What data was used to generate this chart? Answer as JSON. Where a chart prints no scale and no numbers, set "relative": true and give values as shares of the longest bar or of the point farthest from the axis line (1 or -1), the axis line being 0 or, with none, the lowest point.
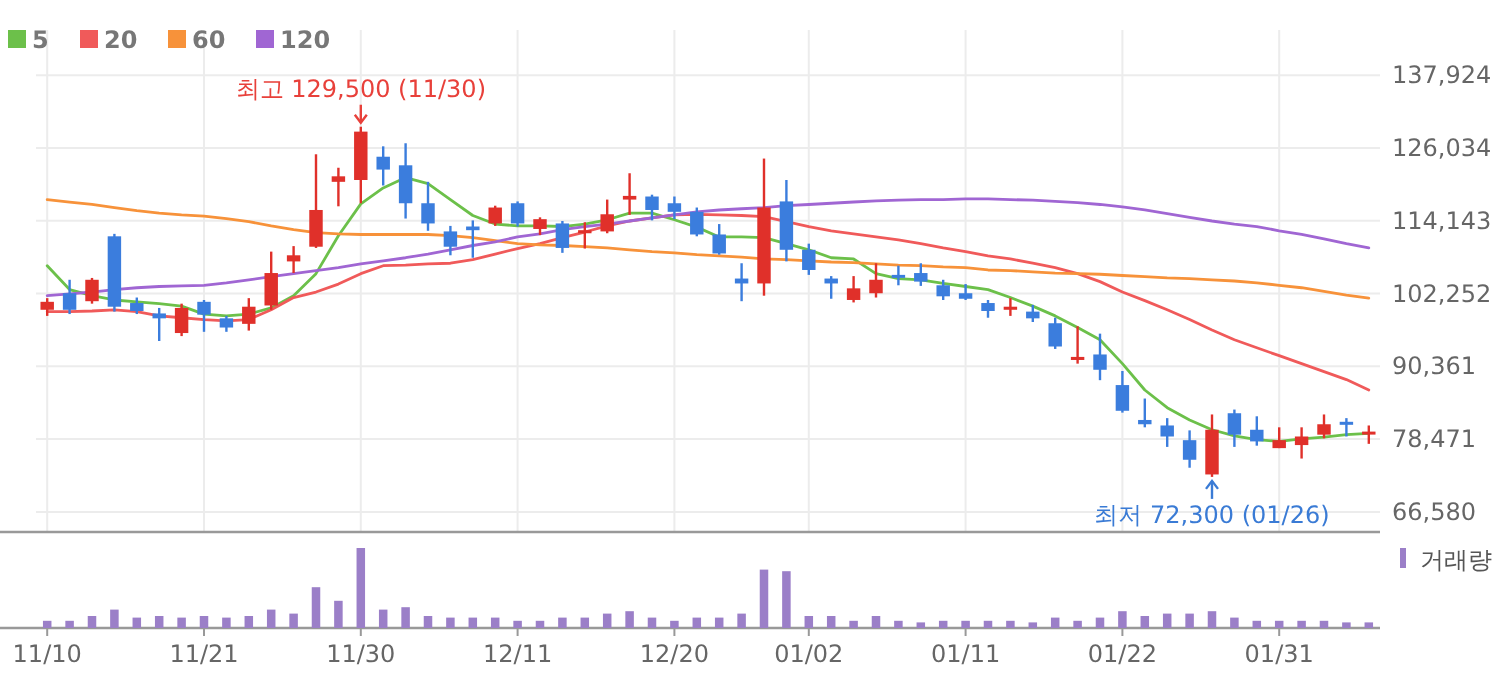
{
  "chart_data": [
    {
      "type": "candlestick",
      "categories": [
        "11/10",
        null,
        null,
        null,
        null,
        null,
        null,
        "11/21",
        null,
        null,
        null,
        null,
        null,
        null,
        "11/30",
        null,
        null,
        null,
        null,
        null,
        null,
        "12/11",
        null,
        null,
        null,
        null,
        null,
        null,
        "12/20",
        null,
        null,
        null,
        null,
        null,
        "01/02",
        null,
        null,
        null,
        null,
        null,
        null,
        "01/11",
        null,
        null,
        null,
        null,
        null,
        null,
        "01/22",
        null,
        null,
        null,
        null,
        null,
        null,
        "01/31",
        null,
        null,
        null,
        null
      ],
      "ohlc": [
        [
          99600,
          101500,
          98600,
          100900
        ],
        [
          102300,
          104500,
          98900,
          99600
        ],
        [
          101000,
          104800,
          100600,
          104500
        ],
        [
          111600,
          112000,
          99300,
          100100
        ],
        [
          100700,
          101600,
          98900,
          99400
        ],
        [
          99000,
          99900,
          94500,
          98200
        ],
        [
          95800,
          100600,
          95300,
          99900
        ],
        [
          100900,
          101200,
          96000,
          98800
        ],
        [
          98200,
          98600,
          96000,
          96700
        ],
        [
          97300,
          101500,
          96200,
          100100
        ],
        [
          100300,
          109100,
          99600,
          105600
        ],
        [
          107500,
          110000,
          105600,
          108500
        ],
        [
          109900,
          125000,
          109700,
          115900
        ],
        [
          120500,
          122800,
          116500,
          121400
        ],
        [
          120800,
          129500,
          117000,
          128700
        ],
        [
          124600,
          126300,
          119900,
          122500
        ],
        [
          123200,
          126800,
          114500,
          117000
        ],
        [
          117000,
          120500,
          112500,
          113700
        ],
        [
          112400,
          113300,
          108500,
          109900
        ],
        [
          113200,
          114200,
          108100,
          112600
        ],
        [
          113700,
          116600,
          113300,
          116300
        ],
        [
          117000,
          117300,
          113200,
          113700
        ],
        [
          112800,
          114700,
          111800,
          114400
        ],
        [
          113700,
          114100,
          108900,
          109700
        ],
        [
          112100,
          113900,
          109600,
          112600
        ],
        [
          112400,
          117600,
          112100,
          115200
        ],
        [
          117600,
          121900,
          115100,
          118200
        ],
        [
          118100,
          118400,
          114200,
          115900
        ],
        [
          117000,
          118100,
          114400,
          115600
        ],
        [
          115600,
          116300,
          111600,
          111900
        ],
        [
          111900,
          113600,
          108600,
          108800
        ],
        [
          104700,
          107200,
          101000,
          103900
        ],
        [
          103900,
          124300,
          101900,
          116300
        ],
        [
          117300,
          120800,
          107500,
          109400
        ],
        [
          109400,
          110400,
          105300,
          106100
        ],
        [
          104700,
          105100,
          101400,
          103900
        ],
        [
          101200,
          105100,
          100800,
          103100
        ],
        [
          102300,
          107200,
          101600,
          104500
        ],
        [
          105300,
          106800,
          103600,
          104900
        ],
        [
          105600,
          107200,
          103500,
          104200
        ],
        [
          103600,
          104500,
          101200,
          101800
        ],
        [
          102300,
          103800,
          101200,
          101400
        ],
        [
          100700,
          101200,
          98300,
          99400
        ],
        [
          99600,
          101500,
          98600,
          100100
        ],
        [
          99300,
          100400,
          97600,
          98200
        ],
        [
          97400,
          98300,
          93200,
          93600
        ],
        [
          91400,
          96900,
          90800,
          91900
        ],
        [
          92300,
          95700,
          88100,
          89800
        ],
        [
          87300,
          89600,
          82800,
          83100
        ],
        [
          81600,
          85100,
          80400,
          80900
        ],
        [
          80700,
          81900,
          77200,
          78900
        ],
        [
          78300,
          79900,
          73800,
          75100
        ],
        [
          72700,
          82500,
          72300,
          80000
        ],
        [
          82700,
          83300,
          77200,
          79200
        ],
        [
          80000,
          82200,
          77400,
          78100
        ],
        [
          77000,
          80400,
          77000,
          78300
        ],
        [
          77500,
          80400,
          75300,
          78900
        ],
        [
          79200,
          82500,
          78600,
          80900
        ],
        [
          81300,
          81900,
          78900,
          80900
        ],
        [
          79300,
          80700,
          77700,
          79700
        ]
      ],
      "series": [
        {
          "name": "5",
          "type": "line",
          "color": "#6cc04a",
          "values": [
            106800,
            102900,
            101900,
            101200,
            100900,
            100600,
            100200,
            98900,
            98600,
            98900,
            99900,
            101900,
            105500,
            111700,
            116900,
            119500,
            121200,
            120200,
            117600,
            115000,
            113600,
            113300,
            113300,
            113200,
            113600,
            114300,
            115400,
            115400,
            114300,
            113100,
            111500,
            111500,
            111400,
            110400,
            109400,
            108100,
            107900,
            105500,
            104700,
            104500,
            103900,
            103400,
            102900,
            101600,
            100200,
            98600,
            96700,
            94700,
            90800,
            86500,
            83600,
            81600,
            80000,
            79000,
            78400,
            78100,
            78500,
            78800,
            79200,
            79400
          ]
        },
        {
          "name": "20",
          "type": "line",
          "color": "#f05a5a",
          "values": [
            99300,
            99300,
            99400,
            99600,
            99300,
            98600,
            98300,
            98000,
            97800,
            98000,
            99600,
            101600,
            102500,
            103800,
            105500,
            106800,
            106900,
            107100,
            107200,
            107800,
            108700,
            109600,
            110400,
            111400,
            112300,
            113300,
            114100,
            114600,
            115100,
            115200,
            115100,
            115000,
            114800,
            114000,
            113200,
            112500,
            112000,
            111500,
            111000,
            110400,
            109700,
            109100,
            108400,
            107900,
            107200,
            106500,
            105500,
            104200,
            102500,
            101100,
            99600,
            98000,
            96300,
            94700,
            93400,
            92100,
            90800,
            89500,
            88200,
            86500
          ]
        },
        {
          "name": "60",
          "type": "line",
          "color": "#f7923a",
          "values": [
            117600,
            117200,
            116800,
            116300,
            115800,
            115400,
            115100,
            114900,
            114500,
            114000,
            113300,
            112700,
            112200,
            112000,
            111900,
            111900,
            111900,
            111900,
            111700,
            111400,
            110900,
            110400,
            110200,
            110100,
            109900,
            109700,
            109400,
            109100,
            108900,
            108600,
            108400,
            108200,
            107900,
            107800,
            107600,
            107400,
            107300,
            107100,
            106900,
            106800,
            106600,
            106500,
            106100,
            106000,
            105800,
            105600,
            105500,
            105400,
            105200,
            105000,
            104800,
            104700,
            104500,
            104300,
            104000,
            103600,
            103200,
            102600,
            102000,
            101500
          ]
        },
        {
          "name": "120",
          "type": "line",
          "color": "#a066d3",
          "values": [
            101900,
            102200,
            102500,
            102900,
            103200,
            103400,
            103500,
            103600,
            104000,
            104500,
            105000,
            105500,
            106000,
            106500,
            107100,
            107600,
            108100,
            108700,
            109400,
            110100,
            110700,
            111500,
            112000,
            112700,
            113200,
            113600,
            114100,
            114600,
            115100,
            115600,
            115900,
            116100,
            116300,
            116600,
            116800,
            117000,
            117200,
            117400,
            117500,
            117600,
            117600,
            117700,
            117700,
            117600,
            117500,
            117300,
            117100,
            116800,
            116400,
            115900,
            115300,
            114700,
            114100,
            113600,
            113200,
            112500,
            111900,
            111200,
            110400,
            109700
          ]
        }
      ],
      "ylim": [
        63300,
        145300
      ],
      "yticks": [
        {
          "value": 66580,
          "label": "66,580"
        },
        {
          "value": 78471,
          "label": "78,471"
        },
        {
          "value": 90361,
          "label": "90,361"
        },
        {
          "value": 102252,
          "label": "102,252"
        },
        {
          "value": 114143,
          "label": "114,143"
        },
        {
          "value": 126034,
          "label": "126,034"
        },
        {
          "value": 137924,
          "label": "137,924"
        }
      ],
      "grid": true,
      "legend": "top left",
      "tick_labels": "y",
      "annotations": [
        {
          "text": "최고 129,500 (11/30)",
          "x": "11/30",
          "y": 129500
        },
        {
          "text": "최저 72,300 (01/26)",
          "y": 72300
        }
      ]
    },
    {
      "type": "bar",
      "relative": true,
      "categories": [
        "11/10",
        null,
        null,
        null,
        null,
        null,
        null,
        "11/21",
        null,
        null,
        null,
        null,
        null,
        null,
        "11/30",
        null,
        null,
        null,
        null,
        null,
        null,
        "12/11",
        null,
        null,
        null,
        null,
        null,
        null,
        "12/20",
        null,
        null,
        null,
        null,
        null,
        "01/02",
        null,
        null,
        null,
        null,
        null,
        null,
        "01/11",
        null,
        null,
        null,
        null,
        null,
        null,
        "01/22",
        null,
        null,
        null,
        null,
        null,
        null,
        "01/31",
        null,
        null,
        null,
        null
      ],
      "series": [
        {
          "name": "거래량",
          "color": "#9b7fc8",
          "values": [
            0.09,
            0.09,
            0.15,
            0.23,
            0.13,
            0.15,
            0.13,
            0.15,
            0.13,
            0.15,
            0.23,
            0.18,
            0.51,
            0.34,
            1,
            0.23,
            0.26,
            0.15,
            0.13,
            0.13,
            0.13,
            0.09,
            0.09,
            0.13,
            0.13,
            0.18,
            0.21,
            0.13,
            0.09,
            0.13,
            0.13,
            0.18,
            0.73,
            0.71,
            0.15,
            0.15,
            0.09,
            0.15,
            0.09,
            0.07,
            0.09,
            0.09,
            0.09,
            0.09,
            0.07,
            0.13,
            0.09,
            0.13,
            0.21,
            0.15,
            0.18,
            0.18,
            0.21,
            0.13,
            0.09,
            0.09,
            0.09,
            0.09,
            0.07,
            0.07
          ]
        }
      ],
      "legend": "top right",
      "tick_labels": "x"
    }
  ]
}
